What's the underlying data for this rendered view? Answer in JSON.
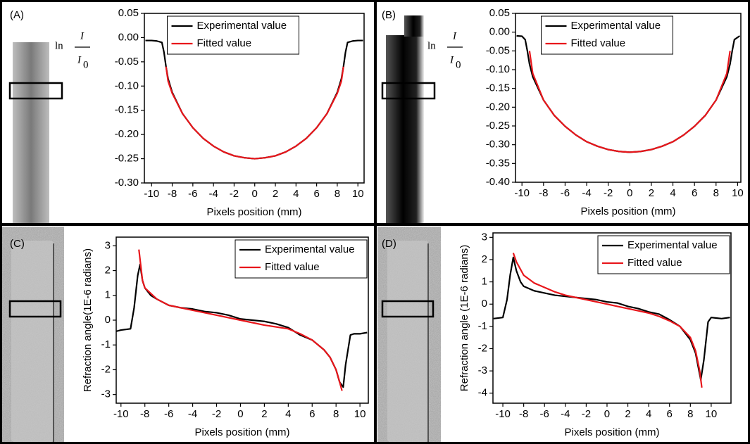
{
  "chart_data": [
    {
      "type": "line",
      "panel_label": "(A)",
      "xlabel": "Pixels position (mm)",
      "ylabel": {
        "prefix": "ln",
        "numerator": "I",
        "denominator": "I",
        "subscript": "0"
      },
      "xlim": [
        -10.7,
        10.6
      ],
      "ylim": [
        -0.3,
        0.05
      ],
      "xticks": [
        -10,
        -8,
        -6,
        -4,
        -2,
        0,
        2,
        4,
        6,
        8,
        10
      ],
      "yticks": [
        0.05,
        {
          "value": 0,
          "label": "0.00"
        },
        -0.05,
        {
          "value": -0.1,
          "label": "-0.10"
        },
        -0.15,
        {
          "value": -0.2,
          "label": "-0.20"
        },
        -0.25,
        {
          "value": -0.3,
          "label": "-0.30"
        }
      ],
      "legend": "upper center",
      "series": [
        {
          "name": "Experimental value",
          "color": "#000000",
          "x": [
            -10.6,
            -10,
            -9.5,
            -9,
            -8.8,
            -8.6,
            -8.4,
            -8,
            -7,
            -6,
            -5,
            -4,
            -3,
            -2,
            -1,
            0,
            1,
            2,
            3,
            4,
            5,
            6,
            7,
            8,
            8.4,
            8.6,
            8.8,
            9,
            9.5,
            10,
            10.5
          ],
          "values": [
            -0.006,
            -0.006,
            -0.007,
            -0.01,
            -0.03,
            -0.06,
            -0.085,
            -0.113,
            -0.157,
            -0.186,
            -0.208,
            -0.224,
            -0.236,
            -0.244,
            -0.248,
            -0.25,
            -0.248,
            -0.244,
            -0.236,
            -0.224,
            -0.208,
            -0.186,
            -0.157,
            -0.113,
            -0.085,
            -0.06,
            -0.03,
            -0.01,
            -0.007,
            -0.006,
            -0.006
          ]
        },
        {
          "name": "Fitted value",
          "color": "#e8161b",
          "x": [
            -8.6,
            -8.4,
            -8,
            -7,
            -6,
            -5,
            -4,
            -3,
            -2,
            -1,
            0,
            1,
            2,
            3,
            4,
            5,
            6,
            7,
            8,
            8.4,
            8.6
          ],
          "values": [
            -0.06,
            -0.09,
            -0.115,
            -0.157,
            -0.186,
            -0.208,
            -0.224,
            -0.236,
            -0.244,
            -0.248,
            -0.25,
            -0.248,
            -0.244,
            -0.236,
            -0.224,
            -0.208,
            -0.186,
            -0.157,
            -0.115,
            -0.09,
            -0.06
          ]
        }
      ]
    },
    {
      "type": "line",
      "panel_label": "(B)",
      "xlabel": "Pixels position (mm)",
      "ylabel": {
        "prefix": "ln",
        "numerator": "I",
        "denominator": "I",
        "subscript": "0"
      },
      "xlim": [
        -10.6,
        10.3
      ],
      "ylim": [
        -0.4,
        0.05
      ],
      "xticks": [
        -10,
        -8,
        -6,
        -4,
        -2,
        0,
        2,
        4,
        6,
        8,
        10
      ],
      "yticks": [
        0.05,
        {
          "value": 0,
          "label": "0.00"
        },
        -0.05,
        {
          "value": -0.1,
          "label": "-0.10"
        },
        -0.15,
        {
          "value": -0.2,
          "label": "-0.20"
        },
        -0.25,
        {
          "value": -0.3,
          "label": "-0.30"
        },
        -0.35,
        {
          "value": -0.4,
          "label": "-0.40"
        }
      ],
      "legend": "upper center",
      "series": [
        {
          "name": "Experimental value",
          "color": "#000000",
          "x": [
            -10.5,
            -10,
            -9.7,
            -9.5,
            -9.3,
            -9,
            -8,
            -7,
            -6,
            -5,
            -4,
            -3,
            -2,
            -1,
            0,
            1,
            2,
            3,
            4,
            5,
            6,
            7,
            8,
            9,
            9.3,
            9.5,
            9.7,
            10.2
          ],
          "values": [
            -0.01,
            -0.011,
            -0.02,
            -0.05,
            -0.085,
            -0.119,
            -0.181,
            -0.222,
            -0.251,
            -0.274,
            -0.292,
            -0.304,
            -0.313,
            -0.318,
            -0.32,
            -0.318,
            -0.313,
            -0.304,
            -0.292,
            -0.274,
            -0.251,
            -0.222,
            -0.181,
            -0.119,
            -0.085,
            -0.05,
            -0.02,
            -0.01
          ]
        },
        {
          "name": "Fitted value",
          "color": "#e8161b",
          "x": [
            -9.3,
            -9,
            -8,
            -7,
            -6,
            -5,
            -4,
            -3,
            -2,
            -1,
            0,
            1,
            2,
            3,
            4,
            5,
            6,
            7,
            8,
            9,
            9.3
          ],
          "values": [
            -0.05,
            -0.11,
            -0.181,
            -0.222,
            -0.251,
            -0.274,
            -0.292,
            -0.304,
            -0.313,
            -0.318,
            -0.32,
            -0.318,
            -0.313,
            -0.304,
            -0.292,
            -0.274,
            -0.251,
            -0.222,
            -0.181,
            -0.11,
            -0.05
          ]
        }
      ]
    },
    {
      "type": "line",
      "panel_label": "(C)",
      "xlabel": "Pixels position (mm)",
      "ylabel": "Refraction angle(1E-6 radians)",
      "xlim": [
        -10.4,
        10.7
      ],
      "ylim": [
        -3.35,
        3.35
      ],
      "xticks": [
        -10,
        -8,
        -6,
        -4,
        -2,
        0,
        2,
        4,
        6,
        8,
        10
      ],
      "yticks": [
        3,
        2,
        1,
        0,
        -1,
        -2,
        -3
      ],
      "legend": "upper right",
      "series": [
        {
          "name": "Experimental value",
          "color": "#000000",
          "x": [
            -10.4,
            -10,
            -9.2,
            -8.9,
            -8.6,
            -8.4,
            -8.2,
            -8,
            -7.5,
            -7,
            -6,
            -5,
            -4,
            -3,
            -2,
            -1,
            0,
            1,
            2,
            3,
            4,
            5,
            6,
            7,
            7.5,
            8,
            8.3,
            8.6,
            8.8,
            9.2,
            9.5,
            10,
            10.6
          ],
          "values": [
            -0.45,
            -0.4,
            -0.35,
            0.5,
            1.8,
            2.25,
            1.6,
            1.3,
            1.0,
            0.85,
            0.6,
            0.5,
            0.45,
            0.35,
            0.3,
            0.2,
            0.05,
            0,
            -0.05,
            -0.15,
            -0.3,
            -0.6,
            -0.8,
            -1.2,
            -1.5,
            -2.0,
            -2.5,
            -2.7,
            -1.8,
            -0.6,
            -0.55,
            -0.55,
            -0.5
          ]
        },
        {
          "name": "Fitted value",
          "color": "#e8161b",
          "x": [
            -8.5,
            -8.2,
            -8,
            -7,
            -6,
            -4,
            -2,
            0,
            2,
            4,
            5,
            6,
            7,
            7.5,
            8,
            8.3,
            8.5
          ],
          "values": [
            2.85,
            1.6,
            1.3,
            0.85,
            0.6,
            0.4,
            0.2,
            0,
            -0.2,
            -0.35,
            -0.55,
            -0.8,
            -1.2,
            -1.5,
            -2.0,
            -2.5,
            -2.85
          ]
        }
      ]
    },
    {
      "type": "line",
      "panel_label": "(D)",
      "xlabel": "Pixels position (mm)",
      "ylabel": "Refraction angle (1E-6 radians)",
      "xlim": [
        -10.95,
        11.9
      ],
      "ylim": [
        -4.45,
        3.2
      ],
      "xticks": [
        -10,
        -8,
        -6,
        -4,
        -2,
        0,
        2,
        4,
        6,
        8,
        10
      ],
      "yticks": [
        3,
        2,
        1,
        0,
        -1,
        -2,
        -3,
        -4
      ],
      "legend": "upper right",
      "series": [
        {
          "name": "Experimental value",
          "color": "#000000",
          "x": [
            -10.9,
            -10,
            -9.6,
            -9.3,
            -9,
            -8.7,
            -8.3,
            -8,
            -7,
            -6,
            -5,
            -4,
            -3,
            -2,
            -1,
            0,
            1,
            2,
            3,
            4,
            5,
            6,
            7,
            8,
            8.5,
            9,
            9.3,
            9.7,
            10,
            11,
            11.8
          ],
          "values": [
            -0.65,
            -0.6,
            0.2,
            1.3,
            2.1,
            1.5,
            1.0,
            0.8,
            0.6,
            0.5,
            0.4,
            0.35,
            0.3,
            0.25,
            0.2,
            0.1,
            0.05,
            -0.1,
            -0.2,
            -0.35,
            -0.45,
            -0.7,
            -1.0,
            -1.6,
            -2.2,
            -3.4,
            -2.5,
            -0.8,
            -0.6,
            -0.65,
            -0.6
          ]
        },
        {
          "name": "Fitted value",
          "color": "#e8161b",
          "x": [
            -9,
            -8.7,
            -8,
            -7,
            -6,
            -5,
            -4,
            -3,
            -2,
            -1,
            0,
            1,
            2,
            3,
            4,
            5,
            6,
            7,
            8,
            8.5,
            8.9,
            9.1
          ],
          "values": [
            2.3,
            1.9,
            1.3,
            0.95,
            0.75,
            0.55,
            0.4,
            0.3,
            0.2,
            0.1,
            0,
            -0.1,
            -0.2,
            -0.3,
            -0.4,
            -0.55,
            -0.75,
            -1.0,
            -1.5,
            -2.1,
            -3.0,
            -3.75
          ]
        }
      ]
    }
  ]
}
